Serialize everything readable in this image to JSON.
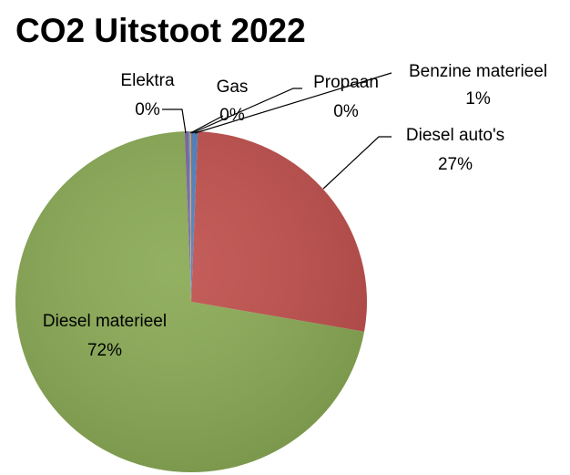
{
  "chart_data": {
    "type": "pie",
    "title": "CO2 Uitstoot 2022",
    "categories": [
      "Benzine materieel",
      "Diesel auto's",
      "Diesel materieel",
      "Elektra",
      "Gas",
      "Propaan"
    ],
    "values": [
      0.6,
      27.2,
      71.6,
      0.4,
      0.1,
      0.1
    ],
    "value_labels": [
      "1%",
      "27%",
      "72%",
      "0%",
      "0%",
      "0%"
    ],
    "colors": [
      "#4f81bd",
      "#c0504d",
      "#8aaa55",
      "#7f65a0",
      "#4bacc6",
      "#f79646"
    ]
  }
}
